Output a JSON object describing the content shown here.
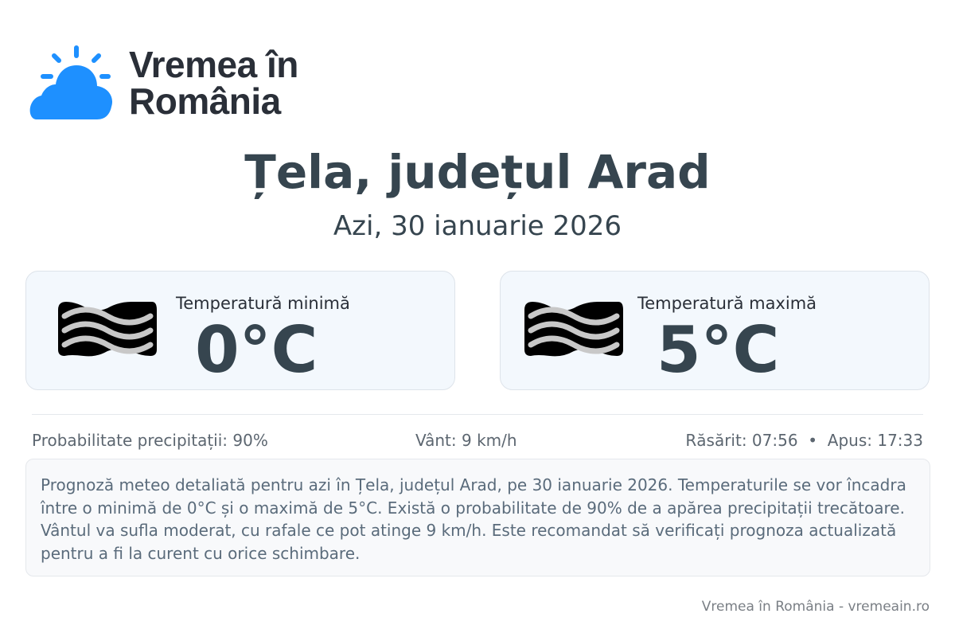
{
  "logo": {
    "line1": "Vremea în",
    "line2": "România",
    "color": "#1e90ff"
  },
  "title": "Țela, județul Arad",
  "date": "Azi, 30 ianuarie 2026",
  "cards": [
    {
      "label": "Temperatură minimă",
      "value": "0°C",
      "icon": "fog-icon"
    },
    {
      "label": "Temperatură maximă",
      "value": "5°C",
      "icon": "fog-icon"
    }
  ],
  "stats": {
    "precip": "Probabilitate precipitații: 90%",
    "wind": "Vânt: 9 km/h",
    "sun": "Răsărit: 07:56  •  Apus: 17:33"
  },
  "description": "Prognoză meteo detaliată pentru azi în Țela, județul Arad, pe 30 ianuarie 2026. Temperaturile se vor încadra între o minimă de 0°C și o maximă de 5°C. Există o probabilitate de 90% de a apărea precipitații trecătoare. Vântul va sufla moderat, cu rafale ce pot atinge 9 km/h. Este recomandat să verificați prognoza actualizată pentru a fi la curent cu orice schimbare.",
  "footer": "Vremea în România - vremeain.ro"
}
